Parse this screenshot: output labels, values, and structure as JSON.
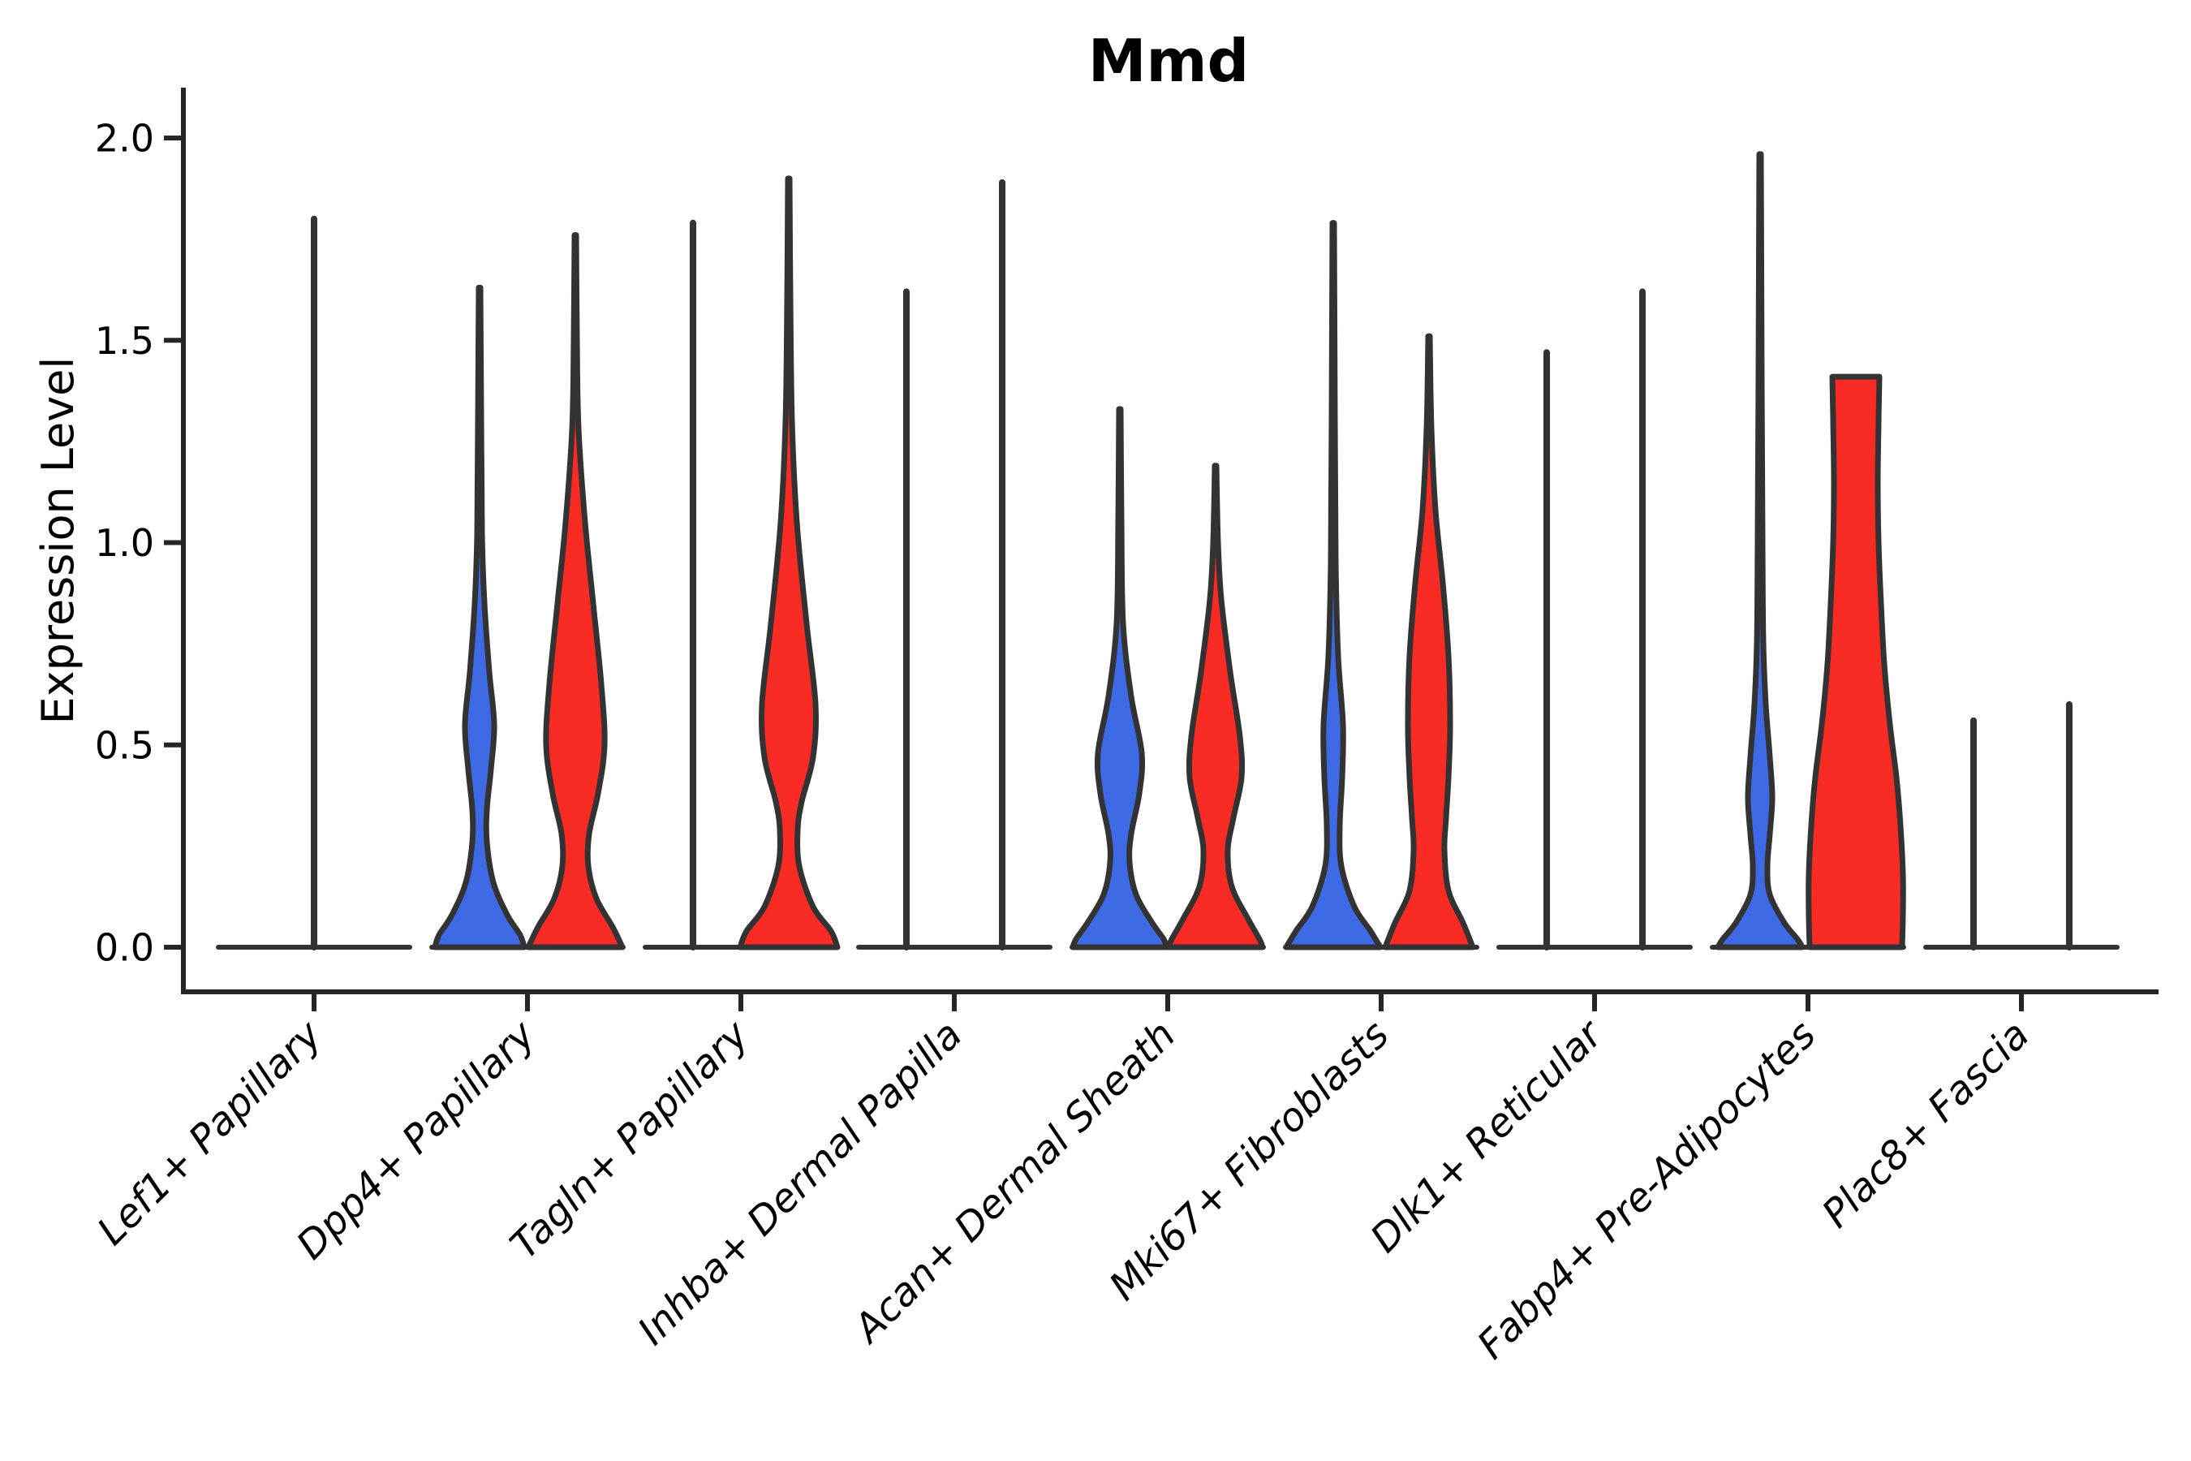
{
  "figure": {
    "title": "Mmd",
    "ylabel": "Expression Level"
  },
  "colors": {
    "blue": "#3E6BE5",
    "red": "#F92B25",
    "edge": "#333333",
    "axis": "#262626",
    "text": "#000000",
    "background": "#FFFFFF"
  },
  "chart_data": {
    "type": "violin",
    "title": "Mmd",
    "xlabel": "",
    "ylabel": "Expression Level",
    "ylim": [
      0,
      2.05
    ],
    "yticks": [
      0.0,
      0.5,
      1.0,
      1.5,
      2.0
    ],
    "ytick_labels": [
      "0.0",
      "0.5",
      "1.0",
      "1.5",
      "2.0"
    ],
    "grid": false,
    "legend_position": "none",
    "series": [
      {
        "name": "group-blue",
        "color_key": "blue"
      },
      {
        "name": "group-red",
        "color_key": "red"
      }
    ],
    "categories": [
      "Lef1+ Papillary",
      "Dpp4+ Papillary",
      "Tagln+ Papillary",
      "Inhba+ Dermal Papilla",
      "Acan+ Dermal Sheath",
      "Mki67+ Fibroblasts",
      "Dlk1+ Reticular",
      "Fabp4+ Pre-Adipocytes",
      "Plac8+ Fascia"
    ],
    "violins": [
      {
        "category": "Lef1+ Papillary",
        "spikes": [
          {
            "side": "center",
            "max": 1.8
          }
        ],
        "bodies": []
      },
      {
        "category": "Dpp4+ Papillary",
        "spikes": [],
        "bodies": [
          {
            "color_key": "blue",
            "side": "left",
            "spike_max": 1.63,
            "flat_top": false,
            "profile": [
              [
                1.63,
                1
              ],
              [
                1.3,
                2
              ],
              [
                1.02,
                3
              ],
              [
                0.85,
                6
              ],
              [
                0.68,
                12
              ],
              [
                0.55,
                18
              ],
              [
                0.44,
                14
              ],
              [
                0.34,
                9
              ],
              [
                0.26,
                9
              ],
              [
                0.16,
                17
              ],
              [
                0.08,
                34
              ],
              [
                0.03,
                50
              ],
              [
                0.0,
                55
              ]
            ]
          },
          {
            "color_key": "red",
            "side": "right",
            "spike_max": 1.76,
            "flat_top": false,
            "profile": [
              [
                1.76,
                1
              ],
              [
                1.5,
                2
              ],
              [
                1.28,
                4
              ],
              [
                1.05,
                12
              ],
              [
                0.85,
                22
              ],
              [
                0.65,
                32
              ],
              [
                0.5,
                36
              ],
              [
                0.38,
                28
              ],
              [
                0.28,
                17
              ],
              [
                0.2,
                16
              ],
              [
                0.12,
                26
              ],
              [
                0.05,
                46
              ],
              [
                0.0,
                58
              ]
            ]
          }
        ]
      },
      {
        "category": "Tagln+ Papillary",
        "spikes": [
          {
            "side": "left",
            "max": 1.79
          }
        ],
        "bodies": [
          {
            "color_key": "red",
            "side": "right",
            "spike_max": 1.9,
            "flat_top": false,
            "profile": [
              [
                1.9,
                1
              ],
              [
                1.6,
                2
              ],
              [
                1.3,
                4
              ],
              [
                1.05,
                10
              ],
              [
                0.8,
                22
              ],
              [
                0.6,
                33
              ],
              [
                0.47,
                30
              ],
              [
                0.36,
                16
              ],
              [
                0.29,
                11
              ],
              [
                0.2,
                13
              ],
              [
                0.1,
                30
              ],
              [
                0.04,
                52
              ],
              [
                0.0,
                60
              ]
            ]
          }
        ]
      },
      {
        "category": "Inhba+ Dermal Papilla",
        "spikes": [
          {
            "side": "left",
            "max": 1.62
          },
          {
            "side": "right",
            "max": 1.89
          }
        ],
        "bodies": []
      },
      {
        "category": "Acan+ Dermal Sheath",
        "spikes": [],
        "bodies": [
          {
            "color_key": "blue",
            "side": "left",
            "spike_max": 1.33,
            "flat_top": false,
            "profile": [
              [
                1.33,
                1
              ],
              [
                1.05,
                2
              ],
              [
                0.8,
                4
              ],
              [
                0.62,
                14
              ],
              [
                0.48,
                27
              ],
              [
                0.38,
                24
              ],
              [
                0.28,
                14
              ],
              [
                0.21,
                12
              ],
              [
                0.13,
                20
              ],
              [
                0.06,
                40
              ],
              [
                0.02,
                54
              ],
              [
                0.0,
                58
              ]
            ]
          },
          {
            "color_key": "red",
            "side": "right",
            "spike_max": 1.19,
            "flat_top": false,
            "profile": [
              [
                1.19,
                1
              ],
              [
                1.0,
                3
              ],
              [
                0.86,
                7
              ],
              [
                0.68,
                18
              ],
              [
                0.52,
                30
              ],
              [
                0.42,
                32
              ],
              [
                0.32,
                22
              ],
              [
                0.24,
                15
              ],
              [
                0.15,
                20
              ],
              [
                0.07,
                40
              ],
              [
                0.02,
                54
              ],
              [
                0.0,
                58
              ]
            ]
          }
        ]
      },
      {
        "category": "Mki67+ Fibroblasts",
        "spikes": [],
        "bodies": [
          {
            "color_key": "blue",
            "side": "left",
            "spike_max": 1.79,
            "flat_top": false,
            "profile": [
              [
                1.79,
                1
              ],
              [
                1.3,
                2
              ],
              [
                0.95,
                3
              ],
              [
                0.72,
                6
              ],
              [
                0.55,
                12
              ],
              [
                0.42,
                11
              ],
              [
                0.3,
                8
              ],
              [
                0.2,
                10
              ],
              [
                0.1,
                26
              ],
              [
                0.04,
                46
              ],
              [
                0.0,
                58
              ]
            ]
          },
          {
            "color_key": "red",
            "side": "right",
            "spike_max": 1.51,
            "flat_top": false,
            "profile": [
              [
                1.51,
                1
              ],
              [
                1.28,
                3
              ],
              [
                1.08,
                8
              ],
              [
                0.9,
                17
              ],
              [
                0.72,
                24
              ],
              [
                0.55,
                26
              ],
              [
                0.42,
                24
              ],
              [
                0.32,
                21
              ],
              [
                0.24,
                19
              ],
              [
                0.14,
                24
              ],
              [
                0.06,
                42
              ],
              [
                0.0,
                54
              ]
            ]
          }
        ]
      },
      {
        "category": "Dlk1+ Reticular",
        "spikes": [
          {
            "side": "left",
            "max": 1.47
          },
          {
            "side": "right",
            "max": 1.62
          }
        ],
        "bodies": []
      },
      {
        "category": "Fabp4+ Pre-Adipocytes",
        "spikes": [],
        "bodies": [
          {
            "color_key": "blue",
            "side": "left",
            "spike_max": 1.96,
            "flat_top": false,
            "profile": [
              [
                1.96,
                1
              ],
              [
                1.4,
                2
              ],
              [
                1.0,
                3
              ],
              [
                0.75,
                4
              ],
              [
                0.6,
                7
              ],
              [
                0.47,
                12
              ],
              [
                0.37,
                15
              ],
              [
                0.28,
                12
              ],
              [
                0.2,
                9
              ],
              [
                0.13,
                12
              ],
              [
                0.06,
                30
              ],
              [
                0.02,
                46
              ],
              [
                0.0,
                52
              ]
            ]
          },
          {
            "color_key": "red",
            "side": "right",
            "spike_max": null,
            "flat_top": true,
            "profile": [
              [
                1.41,
                29
              ],
              [
                1.3,
                28
              ],
              [
                1.15,
                27
              ],
              [
                1.0,
                28
              ],
              [
                0.85,
                31
              ],
              [
                0.7,
                35
              ],
              [
                0.55,
                42
              ],
              [
                0.42,
                50
              ],
              [
                0.3,
                55
              ],
              [
                0.18,
                58
              ],
              [
                0.08,
                58
              ],
              [
                0.0,
                57
              ]
            ]
          }
        ]
      },
      {
        "category": "Plac8+ Fascia",
        "spikes": [
          {
            "side": "left",
            "max": 0.56
          },
          {
            "side": "right",
            "max": 0.6
          }
        ],
        "bodies": []
      }
    ]
  }
}
